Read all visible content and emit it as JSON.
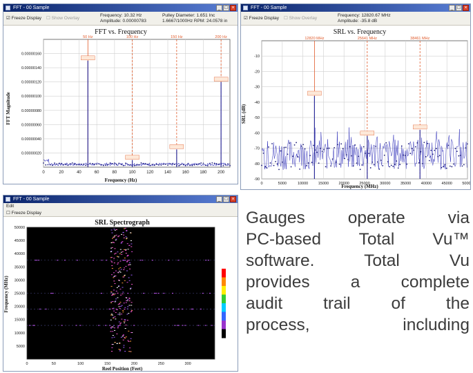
{
  "colors": {
    "accent": "#0a246a",
    "fft_line": "#2b2bb8",
    "marker": "#e05a2a"
  },
  "windows": {
    "fft": {
      "title": "FFT - 00 Sample",
      "toolbar": {
        "freeze_label": "Freeze Display",
        "overlay_label": "Show Overlay"
      },
      "info": {
        "l1": "Frequency: 10.32 Hz",
        "l2": "Amplitude: 0.00000783",
        "r1": "Pulley Diameter: 1.651 Inc",
        "r2": "1.6667/1000Hz RPM: 24.0578 in"
      },
      "chart_title": "FFT vs. Frequency",
      "xlabel": "Frequency (Hz)",
      "ylabel": "FFT Magnitude"
    },
    "srl": {
      "title": "FFT - 00 Sample",
      "toolbar": {
        "freeze_label": "Freeze Display",
        "overlay_label": "Show Overlay"
      },
      "info": {
        "l1": "Frequency: 12820.67 MHz",
        "l2": "Amplitude: -35.8 dB"
      },
      "chart_title": "SRL vs. Frequency",
      "xlabel": "Frequency (MHz)",
      "ylabel": "SRL (dB)"
    },
    "spectro": {
      "title": "FFT - 00 Sample",
      "menu_label": "Edit",
      "toolbar": {
        "freeze_label": "Freeze Display"
      },
      "chart_title": "SRL Spectrograph",
      "xlabel": "Reel Position (Feet)",
      "ylabel": "Frequency (MHz)"
    }
  },
  "caption": {
    "lines": [
      "Gauges operate via",
      "PC-based Total Vu™",
      "software. Total Vu",
      "provides a complete",
      "audit trail of the",
      "process, including"
    ]
  },
  "chart_data": [
    {
      "type": "line",
      "title": "FFT vs. Frequency",
      "xlabel": "Frequency (Hz)",
      "ylabel": "FFT Magnitude",
      "xlim": [
        0,
        210
      ],
      "ylim": [
        0,
        1.8e-06
      ],
      "xticks": [
        0,
        20,
        40,
        60,
        80,
        100,
        120,
        140,
        160,
        180,
        200
      ],
      "yticks": [
        "0.00000020",
        "0.00000040",
        "0.00000060",
        "0.00000080",
        "0.00000100",
        "0.00000120",
        "0.00000140",
        "0.00000160"
      ],
      "markers": [
        {
          "x": 50,
          "label": "50 Hz",
          "peak": 1.5e-06
        },
        {
          "x": 100,
          "label": "100 Hz",
          "peak": 1e-07
        },
        {
          "x": 150,
          "label": "150 Hz",
          "peak": 2.5e-07
        },
        {
          "x": 200,
          "label": "200 Hz",
          "peak": 1.2e-06
        }
      ]
    },
    {
      "type": "line",
      "title": "SRL vs. Frequency",
      "xlabel": "Frequency (MHz)",
      "ylabel": "SRL (dB)",
      "xlim": [
        0,
        50000
      ],
      "ylim": [
        -90,
        0
      ],
      "xticks": [
        0,
        5000,
        10000,
        15000,
        20000,
        25000,
        30000,
        35000,
        40000,
        45000,
        50000
      ],
      "yticks": [
        -10,
        -20,
        -30,
        -40,
        -50,
        -60,
        -70,
        -80,
        -90
      ],
      "markers": [
        {
          "x": 12820,
          "label": "12820 MHz",
          "peak": -36
        },
        {
          "x": 25641,
          "label": "25641 MHz",
          "peak": -62
        },
        {
          "x": 38461,
          "label": "38461 MHz",
          "peak": -58
        }
      ]
    },
    {
      "type": "heatmap",
      "title": "SRL Spectrograph",
      "xlabel": "Reel Position (Feet)",
      "ylabel": "Frequency (MHz)",
      "xlim": [
        0,
        350
      ],
      "ylim": [
        0,
        50000
      ],
      "xticks": [
        0,
        50,
        100,
        150,
        200,
        250,
        300
      ],
      "yticks": [
        5000,
        10000,
        15000,
        20000,
        25000,
        30000,
        35000,
        40000,
        45000,
        50000
      ]
    }
  ]
}
